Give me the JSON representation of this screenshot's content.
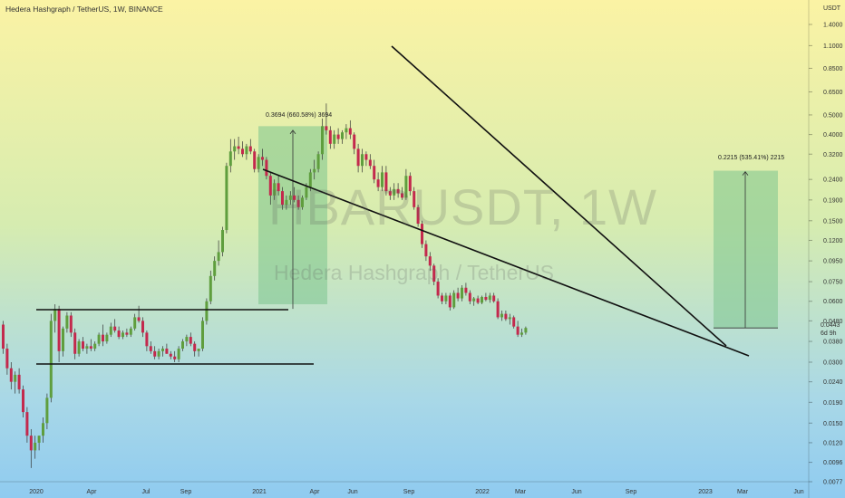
{
  "header": {
    "title": "Hedera Hashgraph / TetherUS, 1W, BINANCE"
  },
  "watermark": {
    "symbol": "HBARUSDT, 1W",
    "name": "Hedera Hashgraph / TetherUS"
  },
  "colors": {
    "up": "#5f9e3e",
    "down": "#c3294d",
    "wick": "#333333",
    "box": "#7cc58e",
    "line": "#111111"
  },
  "chart_data": {
    "type": "candlestick",
    "ylabel": "USDT",
    "log_scale": true,
    "ylim": [
      0.0077,
      1.4
    ],
    "last_price": "0.0443",
    "countdown": "6d 9h",
    "y_ticks": [
      "1.4000",
      "1.1000",
      "0.8500",
      "0.6500",
      "0.5000",
      "0.4000",
      "0.3200",
      "0.2400",
      "0.1900",
      "0.1500",
      "0.1200",
      "0.0950",
      "0.0750",
      "0.0600",
      "0.0480",
      "0.0380",
      "0.0300",
      "0.0240",
      "0.0190",
      "0.0150",
      "0.0120",
      "0.0096",
      "0.0077"
    ],
    "x_labels": [
      "2020",
      "Apr",
      "Jul",
      "Sep",
      "2021",
      "Apr",
      "Jun",
      "Sep",
      "2022",
      "Mar",
      "Jun",
      "Sep",
      "2023",
      "Mar",
      "Jun"
    ],
    "annotations": [
      {
        "text": "0.3694 (660.58%) 3694"
      },
      {
        "text": "0.2215 (535.41%) 2215"
      }
    ],
    "candles": [
      [
        0.046,
        0.048,
        0.033,
        0.035
      ],
      [
        0.035,
        0.037,
        0.026,
        0.028
      ],
      [
        0.028,
        0.03,
        0.022,
        0.024
      ],
      [
        0.024,
        0.027,
        0.021,
        0.026
      ],
      [
        0.026,
        0.028,
        0.021,
        0.022
      ],
      [
        0.022,
        0.023,
        0.016,
        0.017
      ],
      [
        0.017,
        0.018,
        0.012,
        0.013
      ],
      [
        0.013,
        0.014,
        0.009,
        0.011
      ],
      [
        0.011,
        0.013,
        0.01,
        0.012
      ],
      [
        0.012,
        0.013,
        0.011,
        0.013
      ],
      [
        0.013,
        0.016,
        0.012,
        0.015
      ],
      [
        0.015,
        0.021,
        0.014,
        0.02
      ],
      [
        0.02,
        0.052,
        0.019,
        0.048
      ],
      [
        0.048,
        0.058,
        0.042,
        0.055
      ],
      [
        0.055,
        0.057,
        0.03,
        0.034
      ],
      [
        0.034,
        0.045,
        0.032,
        0.044
      ],
      [
        0.044,
        0.053,
        0.042,
        0.051
      ],
      [
        0.051,
        0.053,
        0.04,
        0.042
      ],
      [
        0.042,
        0.044,
        0.031,
        0.033
      ],
      [
        0.033,
        0.039,
        0.032,
        0.038
      ],
      [
        0.038,
        0.04,
        0.034,
        0.035
      ],
      [
        0.035,
        0.037,
        0.033,
        0.036
      ],
      [
        0.036,
        0.039,
        0.034,
        0.035
      ],
      [
        0.035,
        0.038,
        0.034,
        0.037
      ],
      [
        0.037,
        0.042,
        0.036,
        0.041
      ],
      [
        0.041,
        0.046,
        0.036,
        0.038
      ],
      [
        0.038,
        0.042,
        0.037,
        0.041
      ],
      [
        0.041,
        0.047,
        0.04,
        0.045
      ],
      [
        0.045,
        0.049,
        0.042,
        0.043
      ],
      [
        0.043,
        0.045,
        0.039,
        0.04
      ],
      [
        0.04,
        0.043,
        0.039,
        0.042
      ],
      [
        0.042,
        0.044,
        0.04,
        0.041
      ],
      [
        0.041,
        0.045,
        0.04,
        0.044
      ],
      [
        0.044,
        0.052,
        0.043,
        0.05
      ],
      [
        0.05,
        0.057,
        0.047,
        0.048
      ],
      [
        0.048,
        0.05,
        0.04,
        0.042
      ],
      [
        0.042,
        0.043,
        0.034,
        0.036
      ],
      [
        0.036,
        0.038,
        0.033,
        0.034
      ],
      [
        0.034,
        0.036,
        0.031,
        0.032
      ],
      [
        0.032,
        0.035,
        0.031,
        0.034
      ],
      [
        0.034,
        0.036,
        0.032,
        0.035
      ],
      [
        0.035,
        0.037,
        0.033,
        0.033
      ],
      [
        0.033,
        0.034,
        0.031,
        0.032
      ],
      [
        0.032,
        0.034,
        0.03,
        0.031
      ],
      [
        0.031,
        0.036,
        0.03,
        0.035
      ],
      [
        0.035,
        0.039,
        0.034,
        0.038
      ],
      [
        0.038,
        0.041,
        0.036,
        0.04
      ],
      [
        0.04,
        0.042,
        0.036,
        0.037
      ],
      [
        0.037,
        0.038,
        0.032,
        0.034
      ],
      [
        0.034,
        0.035,
        0.032,
        0.035
      ],
      [
        0.035,
        0.05,
        0.034,
        0.048
      ],
      [
        0.048,
        0.062,
        0.046,
        0.06
      ],
      [
        0.06,
        0.085,
        0.058,
        0.08
      ],
      [
        0.08,
        0.1,
        0.076,
        0.095
      ],
      [
        0.095,
        0.12,
        0.09,
        0.105
      ],
      [
        0.105,
        0.14,
        0.1,
        0.135
      ],
      [
        0.135,
        0.29,
        0.13,
        0.28
      ],
      [
        0.28,
        0.38,
        0.26,
        0.33
      ],
      [
        0.33,
        0.38,
        0.3,
        0.35
      ],
      [
        0.35,
        0.39,
        0.32,
        0.34
      ],
      [
        0.34,
        0.37,
        0.31,
        0.32
      ],
      [
        0.32,
        0.36,
        0.3,
        0.35
      ],
      [
        0.35,
        0.38,
        0.32,
        0.33
      ],
      [
        0.33,
        0.34,
        0.26,
        0.27
      ],
      [
        0.27,
        0.32,
        0.26,
        0.31
      ],
      [
        0.31,
        0.34,
        0.28,
        0.3
      ],
      [
        0.3,
        0.31,
        0.24,
        0.25
      ],
      [
        0.25,
        0.26,
        0.18,
        0.2
      ],
      [
        0.2,
        0.24,
        0.19,
        0.23
      ],
      [
        0.23,
        0.25,
        0.2,
        0.21
      ],
      [
        0.21,
        0.22,
        0.17,
        0.18
      ],
      [
        0.18,
        0.2,
        0.17,
        0.19
      ],
      [
        0.19,
        0.21,
        0.18,
        0.2
      ],
      [
        0.2,
        0.22,
        0.185,
        0.19
      ],
      [
        0.19,
        0.2,
        0.17,
        0.175
      ],
      [
        0.175,
        0.2,
        0.17,
        0.195
      ],
      [
        0.195,
        0.23,
        0.19,
        0.22
      ],
      [
        0.22,
        0.27,
        0.21,
        0.26
      ],
      [
        0.26,
        0.3,
        0.24,
        0.27
      ],
      [
        0.27,
        0.33,
        0.26,
        0.32
      ],
      [
        0.32,
        0.48,
        0.3,
        0.44
      ],
      [
        0.44,
        0.57,
        0.4,
        0.42
      ],
      [
        0.42,
        0.44,
        0.34,
        0.36
      ],
      [
        0.36,
        0.42,
        0.34,
        0.4
      ],
      [
        0.4,
        0.43,
        0.36,
        0.38
      ],
      [
        0.38,
        0.42,
        0.36,
        0.41
      ],
      [
        0.41,
        0.45,
        0.38,
        0.43
      ],
      [
        0.43,
        0.47,
        0.38,
        0.4
      ],
      [
        0.4,
        0.41,
        0.32,
        0.34
      ],
      [
        0.34,
        0.36,
        0.26,
        0.28
      ],
      [
        0.28,
        0.34,
        0.26,
        0.32
      ],
      [
        0.32,
        0.33,
        0.28,
        0.3
      ],
      [
        0.3,
        0.32,
        0.27,
        0.28
      ],
      [
        0.28,
        0.3,
        0.23,
        0.24
      ],
      [
        0.24,
        0.26,
        0.21,
        0.22
      ],
      [
        0.22,
        0.28,
        0.21,
        0.26
      ],
      [
        0.26,
        0.28,
        0.2,
        0.21
      ],
      [
        0.21,
        0.22,
        0.19,
        0.2
      ],
      [
        0.2,
        0.23,
        0.19,
        0.215
      ],
      [
        0.215,
        0.23,
        0.195,
        0.205
      ],
      [
        0.205,
        0.22,
        0.19,
        0.195
      ],
      [
        0.195,
        0.27,
        0.19,
        0.25
      ],
      [
        0.25,
        0.26,
        0.2,
        0.21
      ],
      [
        0.21,
        0.22,
        0.17,
        0.175
      ],
      [
        0.175,
        0.18,
        0.14,
        0.145
      ],
      [
        0.145,
        0.15,
        0.11,
        0.115
      ],
      [
        0.115,
        0.12,
        0.095,
        0.1
      ],
      [
        0.1,
        0.105,
        0.085,
        0.09
      ],
      [
        0.09,
        0.092,
        0.072,
        0.075
      ],
      [
        0.075,
        0.078,
        0.062,
        0.064
      ],
      [
        0.064,
        0.066,
        0.058,
        0.06
      ],
      [
        0.06,
        0.066,
        0.058,
        0.064
      ],
      [
        0.064,
        0.066,
        0.054,
        0.056
      ],
      [
        0.056,
        0.068,
        0.055,
        0.066
      ],
      [
        0.066,
        0.07,
        0.06,
        0.062
      ],
      [
        0.062,
        0.072,
        0.06,
        0.07
      ],
      [
        0.07,
        0.074,
        0.064,
        0.066
      ],
      [
        0.066,
        0.068,
        0.058,
        0.06
      ],
      [
        0.06,
        0.063,
        0.057,
        0.062
      ],
      [
        0.062,
        0.064,
        0.058,
        0.059
      ],
      [
        0.059,
        0.064,
        0.058,
        0.063
      ],
      [
        0.063,
        0.066,
        0.06,
        0.061
      ],
      [
        0.061,
        0.066,
        0.059,
        0.064
      ],
      [
        0.064,
        0.066,
        0.059,
        0.06
      ],
      [
        0.06,
        0.062,
        0.049,
        0.05
      ],
      [
        0.05,
        0.054,
        0.048,
        0.052
      ],
      [
        0.052,
        0.054,
        0.048,
        0.049
      ],
      [
        0.049,
        0.052,
        0.046,
        0.05
      ],
      [
        0.05,
        0.051,
        0.044,
        0.045
      ],
      [
        0.045,
        0.048,
        0.04,
        0.041
      ],
      [
        0.041,
        0.044,
        0.04,
        0.042
      ],
      [
        0.042,
        0.045,
        0.041,
        0.0443
      ]
    ]
  }
}
